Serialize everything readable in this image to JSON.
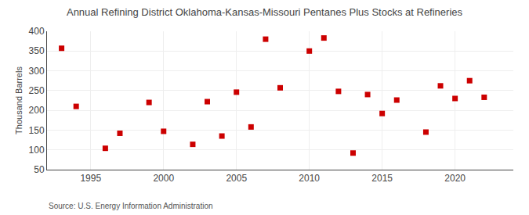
{
  "chart_data": {
    "type": "scatter",
    "title": "Annual Refining District Oklahoma-Kansas-Missouri Pentanes Plus Stocks at Refineries",
    "ylabel": "Thousand Barrels",
    "annotations": [
      "Source: U.S. Energy Information Administration"
    ],
    "x": [
      1993,
      1994,
      1996,
      1997,
      1999,
      2000,
      2002,
      2003,
      2004,
      2005,
      2006,
      2007,
      2008,
      2010,
      2011,
      2012,
      2013,
      2014,
      2015,
      2016,
      2018,
      2019,
      2020,
      2021,
      2022
    ],
    "values": [
      357,
      210,
      104,
      142,
      220,
      147,
      114,
      222,
      135,
      246,
      158,
      380,
      257,
      350,
      383,
      248,
      92,
      240,
      192,
      226,
      145,
      262,
      230,
      275,
      233
    ],
    "color": "#cc0000",
    "marker": "square",
    "xlim": [
      1992,
      2024
    ],
    "ylim": [
      50,
      400
    ],
    "xticks": [
      1995,
      2000,
      2005,
      2010,
      2015,
      2020
    ],
    "yticks": [
      50,
      100,
      150,
      200,
      250,
      300,
      350,
      400
    ],
    "grid": true
  }
}
